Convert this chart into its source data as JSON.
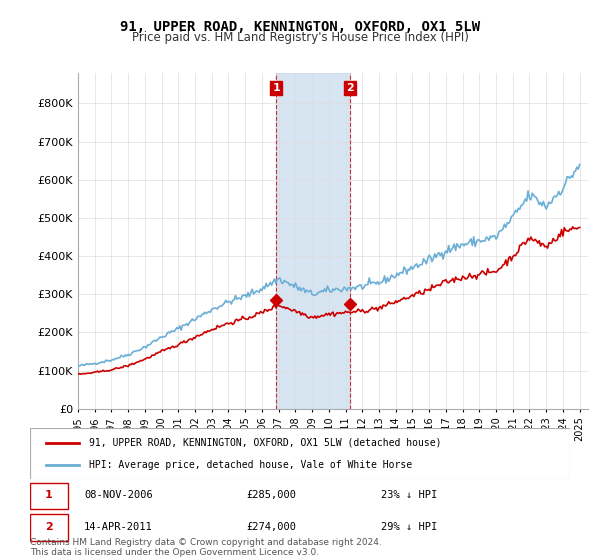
{
  "title": "91, UPPER ROAD, KENNINGTON, OXFORD, OX1 5LW",
  "subtitle": "Price paid vs. HM Land Registry's House Price Index (HPI)",
  "hpi_color": "#6baed6",
  "price_color": "#cc0000",
  "highlight_color": "#c6dbef",
  "marker_color": "#cc0000",
  "purchase1": {
    "date": "08-NOV-2006",
    "price": 285000,
    "hpi_pct": "23% ↓ HPI",
    "x": 2006.85
  },
  "purchase2": {
    "date": "14-APR-2011",
    "price": 274000,
    "hpi_pct": "29% ↓ HPI",
    "x": 2011.28
  },
  "legend_line1": "91, UPPER ROAD, KENNINGTON, OXFORD, OX1 5LW (detached house)",
  "legend_line2": "HPI: Average price, detached house, Vale of White Horse",
  "footnote": "Contains HM Land Registry data © Crown copyright and database right 2024.\nThis data is licensed under the Open Government Licence v3.0.",
  "ylim": [
    0,
    880000
  ],
  "xlim": [
    1995,
    2025.5
  ],
  "yticks": [
    0,
    100000,
    200000,
    300000,
    400000,
    500000,
    600000,
    700000,
    800000
  ],
  "ytick_labels": [
    "£0",
    "£100K",
    "£200K",
    "£300K",
    "£400K",
    "£500K",
    "£600K",
    "£700K",
    "£800K"
  ],
  "xticks": [
    1995,
    1996,
    1997,
    1998,
    1999,
    2000,
    2001,
    2002,
    2003,
    2004,
    2005,
    2006,
    2007,
    2008,
    2009,
    2010,
    2011,
    2012,
    2013,
    2014,
    2015,
    2016,
    2017,
    2018,
    2019,
    2020,
    2021,
    2022,
    2023,
    2024,
    2025
  ]
}
